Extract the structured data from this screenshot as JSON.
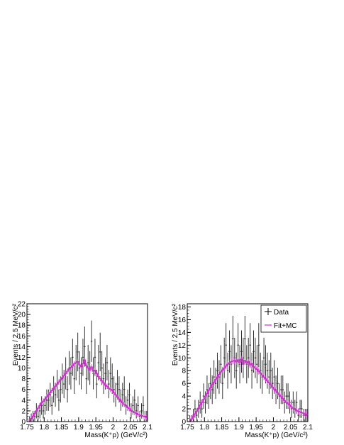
{
  "chart_data": [
    {
      "type": "histogram",
      "name": "left",
      "xlabel": "Mass(K⁺p) (GeV/c²)",
      "ylabel": "Events / 2.5 MeV/c²",
      "xlim": [
        1.75,
        2.1
      ],
      "ylim": [
        0,
        22
      ],
      "x_ticks": [
        "1.75",
        "1.8",
        "1.85",
        "1.9",
        "1.95",
        "2",
        "2.05",
        "2.1"
      ],
      "y_ticks": [
        "0",
        "2",
        "4",
        "6",
        "8",
        "10",
        "12",
        "14",
        "16",
        "18",
        "20",
        "22"
      ],
      "series": [
        {
          "role": "data",
          "color": "#333333",
          "x": [
            1.7575,
            1.7625,
            1.7675,
            1.7725,
            1.7775,
            1.7825,
            1.7875,
            1.7925,
            1.7975,
            1.8025,
            1.8075,
            1.8125,
            1.8175,
            1.8225,
            1.8275,
            1.8325,
            1.8375,
            1.8425,
            1.8475,
            1.8525,
            1.8575,
            1.8625,
            1.8675,
            1.8725,
            1.8775,
            1.8825,
            1.8875,
            1.8925,
            1.8975,
            1.9025,
            1.9075,
            1.9125,
            1.9175,
            1.9225,
            1.9275,
            1.9325,
            1.9375,
            1.9425,
            1.9475,
            1.9525,
            1.9575,
            1.9625,
            1.9675,
            1.9725,
            1.9775,
            1.9825,
            1.9875,
            1.9925,
            1.9975,
            2.0025,
            2.0075,
            2.0125,
            2.0175,
            2.0225,
            2.0275,
            2.0325,
            2.0375,
            2.0425,
            2.0475,
            2.0525,
            2.0575,
            2.0625,
            2.0675,
            2.0725,
            2.0775,
            2.0825,
            2.0875,
            2.0925,
            2.0975
          ],
          "y": [
            0,
            0.5,
            1,
            1,
            2,
            1,
            2,
            3,
            2,
            3,
            4,
            4,
            5,
            3,
            6,
            5,
            7,
            4,
            6,
            8,
            7,
            9,
            6,
            10,
            9,
            12,
            8,
            11,
            13,
            10,
            9,
            12,
            14,
            8,
            11,
            10,
            15,
            9,
            12,
            7,
            11,
            13,
            10,
            8,
            9,
            11,
            7,
            9,
            8,
            6,
            5,
            7,
            6,
            4,
            5,
            6,
            3,
            4,
            5,
            2,
            3,
            4,
            2,
            3,
            1,
            2,
            3,
            1,
            1
          ]
        },
        {
          "role": "fit",
          "name": "Fit+MC",
          "color": "#cc33cc",
          "x": [
            1.7575,
            1.7625,
            1.7675,
            1.7725,
            1.7775,
            1.7825,
            1.7875,
            1.7925,
            1.7975,
            1.8025,
            1.8075,
            1.8125,
            1.8175,
            1.8225,
            1.8275,
            1.8325,
            1.8375,
            1.8425,
            1.8475,
            1.8525,
            1.8575,
            1.8625,
            1.8675,
            1.8725,
            1.8775,
            1.8825,
            1.8875,
            1.8925,
            1.8975,
            1.9025,
            1.9075,
            1.9125,
            1.9175,
            1.9225,
            1.9275,
            1.9325,
            1.9375,
            1.9425,
            1.9475,
            1.9525,
            1.9575,
            1.9625,
            1.9675,
            1.9725,
            1.9775,
            1.9825,
            1.9875,
            1.9925,
            1.9975,
            2.0025,
            2.0075,
            2.0125,
            2.0175,
            2.0225,
            2.0275,
            2.0325,
            2.0375,
            2.0425,
            2.0475,
            2.0525,
            2.0575,
            2.0625,
            2.0675,
            2.0725,
            2.0775,
            2.0825,
            2.0875,
            2.0925,
            2.0975
          ],
          "y": [
            0.2,
            0.6,
            1.0,
            1.5,
            2.0,
            2.5,
            3.0,
            3.5,
            3.8,
            4.2,
            4.6,
            5.0,
            5.4,
            5.8,
            6.2,
            6.6,
            7.0,
            7.4,
            7.8,
            8.2,
            8.6,
            9.0,
            9.4,
            9.8,
            10.1,
            10.4,
            10.8,
            11.0,
            11.2,
            10.6,
            10.2,
            10.8,
            11.5,
            10.4,
            10.0,
            9.6,
            10.2,
            9.4,
            9.6,
            9.0,
            8.4,
            8.0,
            7.6,
            7.2,
            6.8,
            6.6,
            6.2,
            6.0,
            5.8,
            5.4,
            5.0,
            4.6,
            4.2,
            3.8,
            3.5,
            3.2,
            2.9,
            2.6,
            2.4,
            2.1,
            1.9,
            1.7,
            1.5,
            1.3,
            1.2,
            1.1,
            1.0,
            0.9,
            0.8
          ]
        }
      ]
    },
    {
      "type": "histogram",
      "name": "right",
      "xlabel": "Mass(K⁺p) (GeV/c²)",
      "ylabel": "Events / 2.5 MeV/c²",
      "xlim": [
        1.75,
        2.1
      ],
      "ylim": [
        0,
        18.5
      ],
      "x_ticks": [
        "1.75",
        "1.8",
        "1.85",
        "1.9",
        "1.95",
        "2",
        "2.05",
        "2.1"
      ],
      "y_ticks": [
        "0",
        "2",
        "4",
        "6",
        "8",
        "10",
        "12",
        "14",
        "16",
        "18"
      ],
      "legend": {
        "position": "top-right",
        "entries": [
          {
            "label": "Data",
            "color": "#000000"
          },
          {
            "label": "Fit+MC",
            "color": "#cc33cc"
          }
        ]
      },
      "series": [
        {
          "role": "data",
          "name": "Data",
          "color": "#333333",
          "x": [
            1.7575,
            1.7625,
            1.7675,
            1.7725,
            1.7775,
            1.7825,
            1.7875,
            1.7925,
            1.7975,
            1.8025,
            1.8075,
            1.8125,
            1.8175,
            1.8225,
            1.8275,
            1.8325,
            1.8375,
            1.8425,
            1.8475,
            1.8525,
            1.8575,
            1.8625,
            1.8675,
            1.8725,
            1.8775,
            1.8825,
            1.8875,
            1.8925,
            1.8975,
            1.9025,
            1.9075,
            1.9125,
            1.9175,
            1.9225,
            1.9275,
            1.9325,
            1.9375,
            1.9425,
            1.9475,
            1.9525,
            1.9575,
            1.9625,
            1.9675,
            1.9725,
            1.9775,
            1.9825,
            1.9875,
            1.9925,
            1.9975,
            2.0025,
            2.0075,
            2.0125,
            2.0175,
            2.0225,
            2.0275,
            2.0325,
            2.0375,
            2.0425,
            2.0475,
            2.0525,
            2.0575,
            2.0625,
            2.0675,
            2.0725,
            2.0775,
            2.0825,
            2.0875,
            2.0925,
            2.0975
          ],
          "y": [
            0,
            0,
            1,
            2,
            1,
            2,
            3,
            2,
            4,
            3,
            5,
            4,
            6,
            5,
            7,
            6,
            8,
            7,
            9,
            6,
            10,
            12,
            8,
            11,
            9,
            13,
            10,
            8,
            12,
            9,
            11,
            10,
            13,
            9,
            10,
            12,
            8,
            11,
            10,
            9,
            12,
            8,
            7,
            10,
            9,
            8,
            7,
            8,
            6,
            7,
            5,
            6,
            4,
            5,
            5,
            3,
            4,
            4,
            3,
            2,
            3,
            2,
            3,
            1,
            2,
            2,
            1,
            1,
            1
          ]
        },
        {
          "role": "fit",
          "name": "Fit+MC",
          "color": "#cc33cc",
          "x": [
            1.7575,
            1.7625,
            1.7675,
            1.7725,
            1.7775,
            1.7825,
            1.7875,
            1.7925,
            1.7975,
            1.8025,
            1.8075,
            1.8125,
            1.8175,
            1.8225,
            1.8275,
            1.8325,
            1.8375,
            1.8425,
            1.8475,
            1.8525,
            1.8575,
            1.8625,
            1.8675,
            1.8725,
            1.8775,
            1.8825,
            1.8875,
            1.8925,
            1.8975,
            1.9025,
            1.9075,
            1.9125,
            1.9175,
            1.9225,
            1.9275,
            1.9325,
            1.9375,
            1.9425,
            1.9475,
            1.9525,
            1.9575,
            1.9625,
            1.9675,
            1.9725,
            1.9775,
            1.9825,
            1.9875,
            1.9925,
            1.9975,
            2.0025,
            2.0075,
            2.0125,
            2.0175,
            2.0225,
            2.0275,
            2.0325,
            2.0375,
            2.0425,
            2.0475,
            2.0525,
            2.0575,
            2.0625,
            2.0675,
            2.0725,
            2.0775,
            2.0825,
            2.0875,
            2.0925,
            2.0975
          ],
          "y": [
            0.1,
            0.4,
            0.8,
            1.2,
            1.6,
            2.1,
            2.6,
            3.0,
            3.5,
            4.0,
            4.4,
            4.9,
            5.3,
            5.8,
            6.2,
            6.6,
            7.0,
            7.4,
            7.8,
            8.1,
            8.4,
            8.7,
            9.0,
            9.2,
            9.4,
            9.5,
            9.6,
            9.4,
            9.7,
            9.3,
            9.8,
            9.0,
            9.6,
            9.2,
            9.4,
            8.9,
            9.1,
            8.6,
            8.4,
            8.2,
            7.9,
            7.6,
            7.3,
            7.0,
            6.7,
            6.4,
            6.1,
            5.8,
            5.4,
            5.1,
            4.8,
            4.5,
            4.2,
            3.9,
            3.6,
            3.3,
            3.0,
            2.8,
            2.6,
            2.3,
            2.1,
            1.9,
            1.7,
            1.6,
            1.5,
            1.4,
            1.3,
            1.2,
            1.1
          ]
        }
      ]
    }
  ]
}
